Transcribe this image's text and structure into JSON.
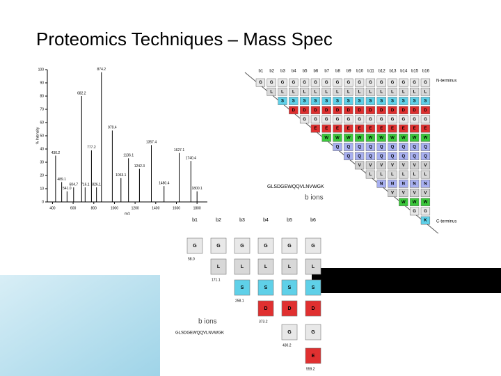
{
  "header": {
    "title": "Proteomics Techniques – Mass Spec"
  },
  "spectrum": {
    "x_label": "m/z",
    "y_label": "% Intensity",
    "xlim": [
      350,
      1900
    ],
    "ylim": [
      0,
      100
    ],
    "xticks": [
      400,
      600,
      800,
      1000,
      1200,
      1400,
      1600,
      1800
    ],
    "yticks": [
      0,
      10,
      20,
      30,
      40,
      50,
      60,
      70,
      80,
      90,
      100
    ],
    "color": "#000000",
    "peaks": [
      {
        "mz": 430.2,
        "intensity": 35,
        "label": "430.2"
      },
      {
        "mz": 489.1,
        "intensity": 15,
        "label": "489.1"
      },
      {
        "mz": 541.0,
        "intensity": 8,
        "label": "541.0"
      },
      {
        "mz": 604.7,
        "intensity": 11,
        "label": "604.7"
      },
      {
        "mz": 682.2,
        "intensity": 80,
        "label": "682.2"
      },
      {
        "mz": 716.1,
        "intensity": 11,
        "label": "716.1"
      },
      {
        "mz": 777.2,
        "intensity": 39,
        "label": "777.2"
      },
      {
        "mz": 826.1,
        "intensity": 11,
        "label": "826.1"
      },
      {
        "mz": 874.2,
        "intensity": 98,
        "label": "874.2"
      },
      {
        "mz": 979.4,
        "intensity": 54,
        "label": "979.4"
      },
      {
        "mz": 1063.1,
        "intensity": 18,
        "label": "1063.1"
      },
      {
        "mz": 1136.1,
        "intensity": 33,
        "label": "1136.1"
      },
      {
        "mz": 1242.3,
        "intensity": 25,
        "label": "1242.3"
      },
      {
        "mz": 1357.4,
        "intensity": 43,
        "label": "1357.4"
      },
      {
        "mz": 1480.4,
        "intensity": 12,
        "label": "1480.4"
      },
      {
        "mz": 1627.1,
        "intensity": 37,
        "label": "1627.1"
      },
      {
        "mz": 1740.4,
        "intensity": 31,
        "label": "1740.4"
      },
      {
        "mz": 1800.1,
        "intensity": 8,
        "label": "1800.1"
      }
    ]
  },
  "ladder": {
    "headers": [
      "b1",
      "b2",
      "b3",
      "b4",
      "b5",
      "b6",
      "b7",
      "b8",
      "b9",
      "b10",
      "b11",
      "b12",
      "b13",
      "b14",
      "b15",
      "b16"
    ],
    "residues": [
      "G",
      "L",
      "S",
      "D",
      "G",
      "E",
      "W",
      "Q",
      "Q",
      "V",
      "L",
      "N",
      "V",
      "W",
      "G",
      "K"
    ],
    "colors": [
      "#e8e8e8",
      "#d8d8d8",
      "#5fd0e8",
      "#e03030",
      "#e8e8e8",
      "#e03030",
      "#3cc83c",
      "#a8b0f0",
      "#a8b0f0",
      "#d0d0d0",
      "#d8d8d8",
      "#a8b0f0",
      "#d0d0d0",
      "#3cc83c",
      "#e8e8e8",
      "#5fd0e8"
    ],
    "n_terminus": "N-terminus",
    "c_terminus": "C-terminus",
    "sequence": "GLSDGEWQQVLNVWGK",
    "caption": "b ions"
  },
  "detail": {
    "headers": [
      "b1",
      "b2",
      "b3",
      "b4",
      "b5",
      "b6"
    ],
    "masses": [
      "58.0",
      "171.1",
      "258.1",
      "373.2",
      "430.2",
      "559.2"
    ],
    "caption": "b ions",
    "sequence": "GLSDGEWQQVLNVWGK"
  }
}
